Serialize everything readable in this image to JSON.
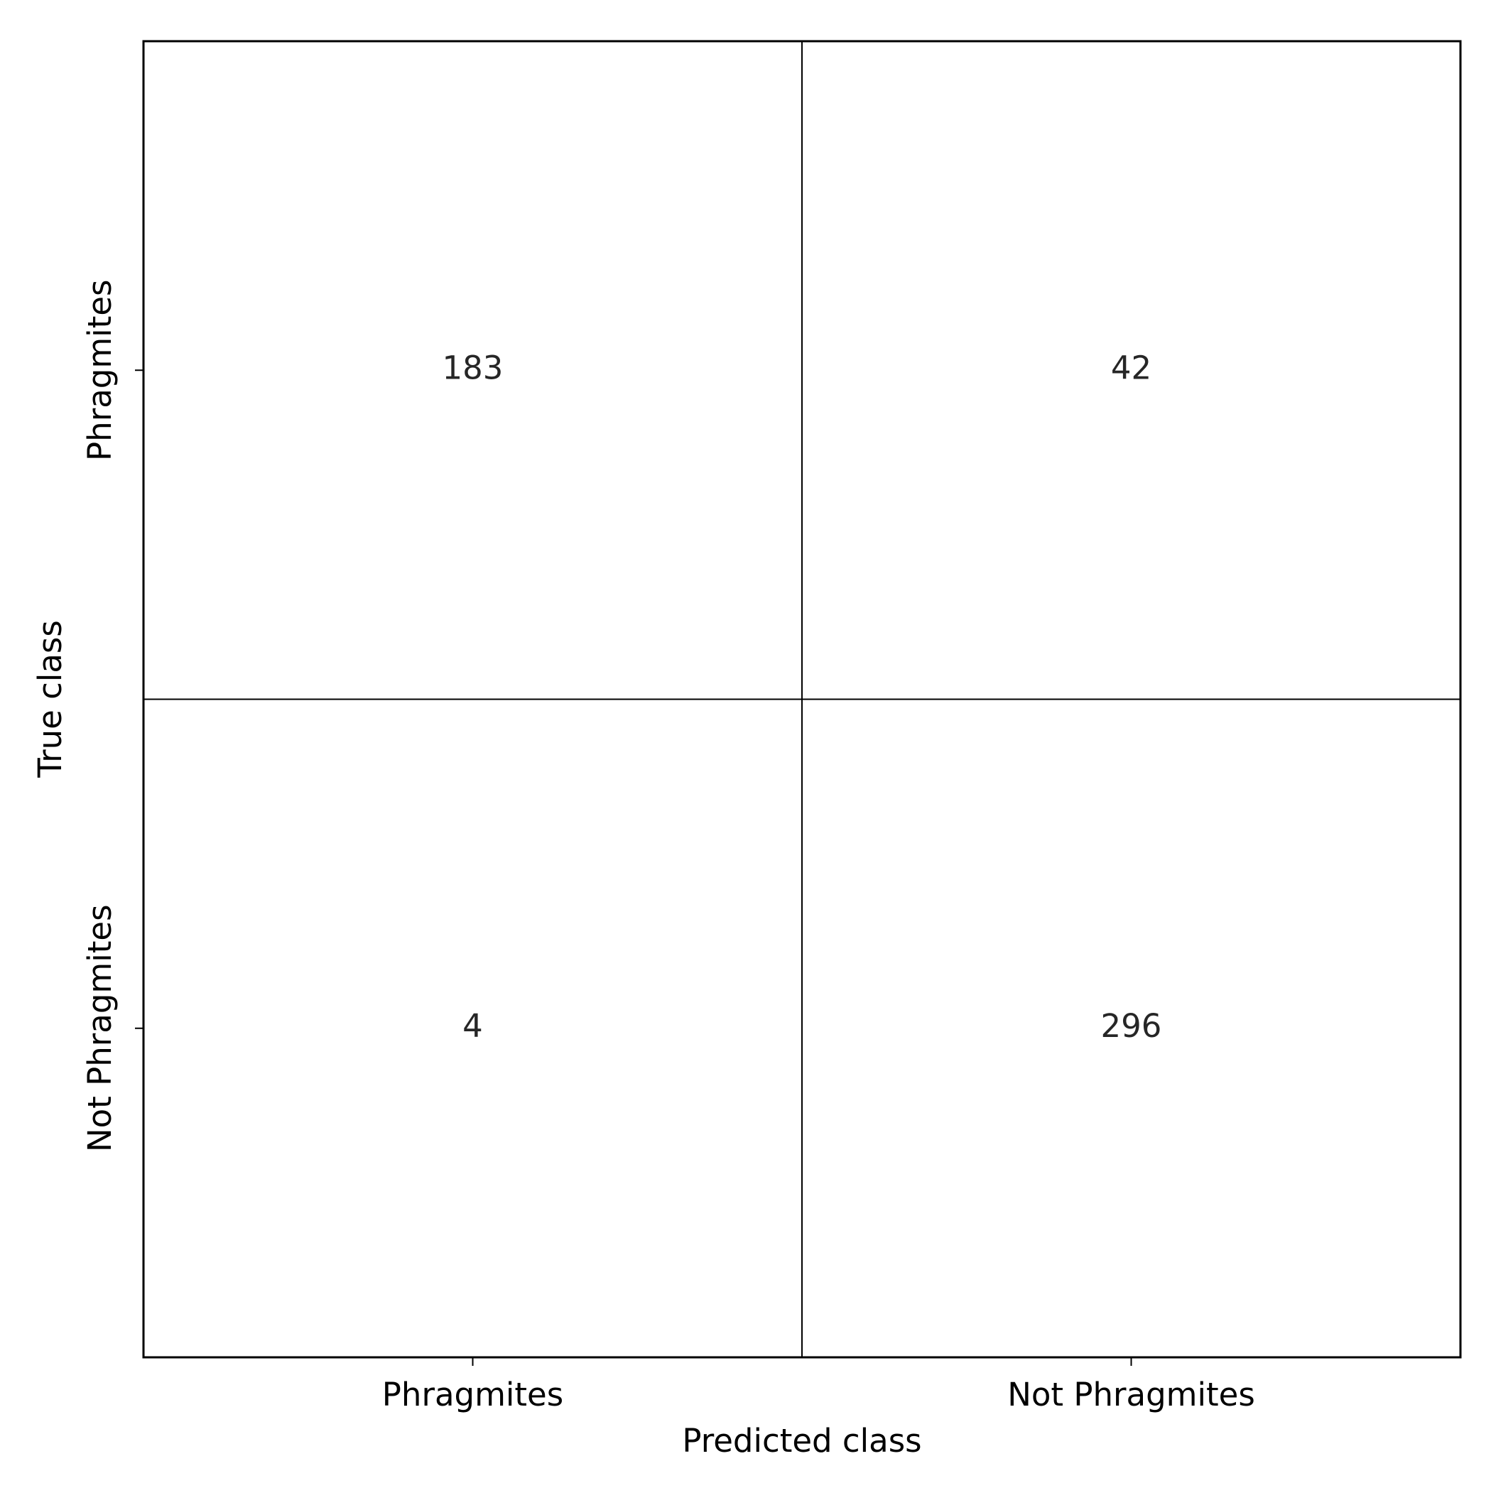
{
  "chart_data": {
    "type": "heatmap",
    "xlabel": "Predicted class",
    "ylabel": "True class",
    "x_categories": [
      "Phragmites",
      "Not Phragmites"
    ],
    "y_categories": [
      "Phragmites",
      "Not Phragmites"
    ],
    "values": [
      [
        183,
        42
      ],
      [
        4,
        296
      ]
    ],
    "color": "#ffffff"
  }
}
